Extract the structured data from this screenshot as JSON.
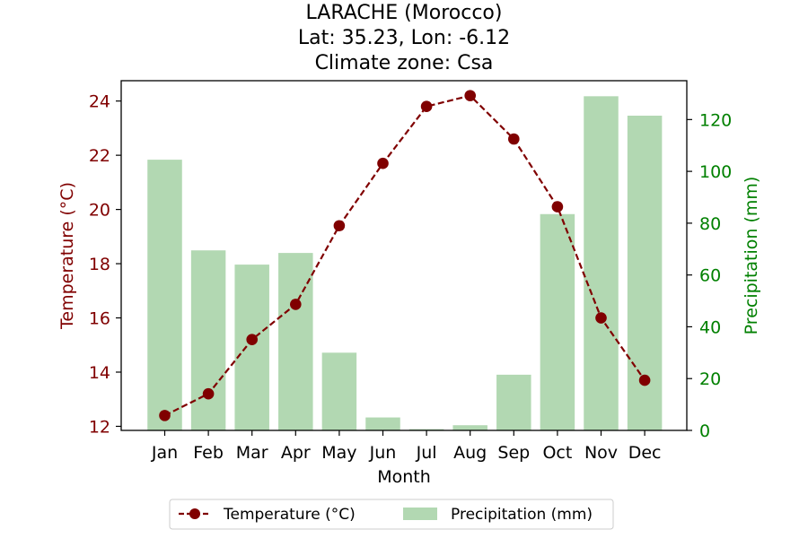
{
  "chart_data": {
    "type": "bar+line",
    "title_lines": [
      "LARACHE (Morocco)",
      "Lat: 35.23, Lon: -6.12",
      "Climate zone: Csa"
    ],
    "xlabel": "Month",
    "categories": [
      "Jan",
      "Feb",
      "Mar",
      "Apr",
      "May",
      "Jun",
      "Jul",
      "Aug",
      "Sep",
      "Oct",
      "Nov",
      "Dec"
    ],
    "y_left": {
      "label": "Temperature (°C)",
      "ylim": [
        11.85,
        24.75
      ],
      "ticks": [
        "12",
        "14",
        "16",
        "18",
        "20",
        "22",
        "24"
      ],
      "color": "#800000"
    },
    "y_right": {
      "label": "Precipitation (mm)",
      "ylim": [
        0,
        135
      ],
      "ticks": [
        "0",
        "20",
        "40",
        "60",
        "80",
        "100",
        "120"
      ],
      "color": "#008000"
    },
    "series": [
      {
        "name": "Temperature (°C)",
        "kind": "line",
        "axis": "left",
        "color": "#800000",
        "values": [
          12.4,
          13.2,
          15.2,
          16.5,
          19.4,
          21.7,
          23.8,
          24.2,
          22.6,
          20.1,
          16.0,
          13.7
        ]
      },
      {
        "name": "Precipitation (mm)",
        "kind": "bar",
        "axis": "right",
        "color": "#b2d8b2",
        "values": [
          104.5,
          69.5,
          64.0,
          68.5,
          30.0,
          5.0,
          0.5,
          2.0,
          21.5,
          83.5,
          129.0,
          121.5
        ]
      }
    ],
    "legend_position": "bottom-center",
    "grid": false
  }
}
